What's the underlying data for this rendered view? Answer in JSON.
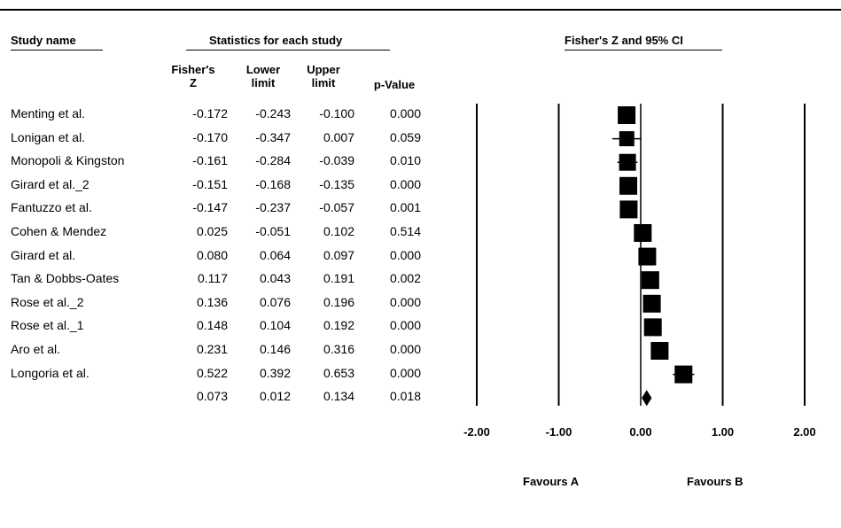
{
  "headers": {
    "study_name": "Study name",
    "statistics": "Statistics for each study",
    "plot": "Fisher's Z and 95%  CI"
  },
  "columns": {
    "z_line1": "Fisher's",
    "z_line2": "Z",
    "lower_line1": "Lower",
    "lower_line2": "limit",
    "upper_line1": "Upper",
    "upper_line2": "limit",
    "p": "p-Value"
  },
  "favours": {
    "left": "Favours A",
    "right": "Favours B"
  },
  "chart_data": {
    "type": "forest",
    "xlim": [
      -2.0,
      2.0
    ],
    "xticks": [
      "-2.00",
      "-1.00",
      "0.00",
      "1.00",
      "2.00"
    ],
    "studies": [
      {
        "name": "Menting et al.",
        "z": "-0.172",
        "lower": "-0.243",
        "upper": "-0.100",
        "p": "0.000",
        "weight": 1.0
      },
      {
        "name": "Lonigan et al.",
        "z": "-0.170",
        "lower": "-0.347",
        "upper": "0.007",
        "p": "0.059",
        "weight": 0.85
      },
      {
        "name": "Monopoli & Kingston",
        "z": "-0.161",
        "lower": "-0.284",
        "upper": "-0.039",
        "p": "0.010",
        "weight": 0.95
      },
      {
        "name": "Girard et al._2",
        "z": "-0.151",
        "lower": "-0.168",
        "upper": "-0.135",
        "p": "0.000",
        "weight": 1.0
      },
      {
        "name": "Fantuzzo et al.",
        "z": "-0.147",
        "lower": "-0.237",
        "upper": "-0.057",
        "p": "0.001",
        "weight": 1.0
      },
      {
        "name": "Cohen & Mendez",
        "z": "0.025",
        "lower": "-0.051",
        "upper": "0.102",
        "p": "0.514",
        "weight": 1.0
      },
      {
        "name": "Girard et al.",
        "z": "0.080",
        "lower": "0.064",
        "upper": "0.097",
        "p": "0.000",
        "weight": 1.0
      },
      {
        "name": "Tan & Dobbs-Oates",
        "z": "0.117",
        "lower": "0.043",
        "upper": "0.191",
        "p": "0.002",
        "weight": 1.0
      },
      {
        "name": "Rose et al._2",
        "z": "0.136",
        "lower": "0.076",
        "upper": "0.196",
        "p": "0.000",
        "weight": 1.0
      },
      {
        "name": "Rose et al._1",
        "z": "0.148",
        "lower": "0.104",
        "upper": "0.192",
        "p": "0.000",
        "weight": 1.0
      },
      {
        "name": "Aro et al.",
        "z": "0.231",
        "lower": "0.146",
        "upper": "0.316",
        "p": "0.000",
        "weight": 1.0
      },
      {
        "name": "Longoria et al.",
        "z": "0.522",
        "lower": "0.392",
        "upper": "0.653",
        "p": "0.000",
        "weight": 1.0
      }
    ],
    "summary": {
      "z": "0.073",
      "lower": "0.012",
      "upper": "0.134",
      "p": "0.018"
    }
  }
}
